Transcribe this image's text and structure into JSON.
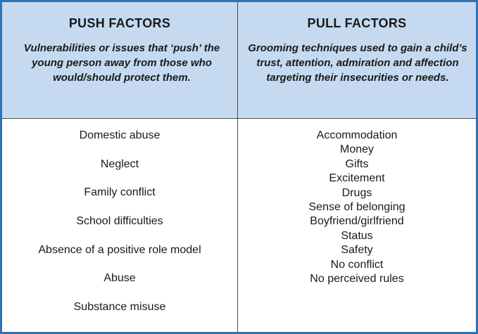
{
  "push": {
    "title": "PUSH FACTORS",
    "description": "Vulnerabilities or issues that ‘push’ the young person away from those who would/should protect them.",
    "items": [
      "Domestic abuse",
      "Neglect",
      "Family conflict",
      "School difficulties",
      "Absence of a positive role model",
      "Abuse",
      "Substance misuse"
    ]
  },
  "pull": {
    "title": "PULL FACTORS",
    "description": "Grooming techniques used to gain a child’s trust, attention, admiration and affection targeting their insecurities or needs.",
    "items": [
      "Accommodation",
      "Money",
      "Gifts",
      "Excitement",
      "Drugs",
      "Sense of belonging",
      "Boyfriend/girlfriend",
      "Status",
      "Safety",
      "No conflict",
      "No perceived rules"
    ]
  },
  "colors": {
    "border": "#2e74b5",
    "header_background": "#c5d9f1"
  }
}
